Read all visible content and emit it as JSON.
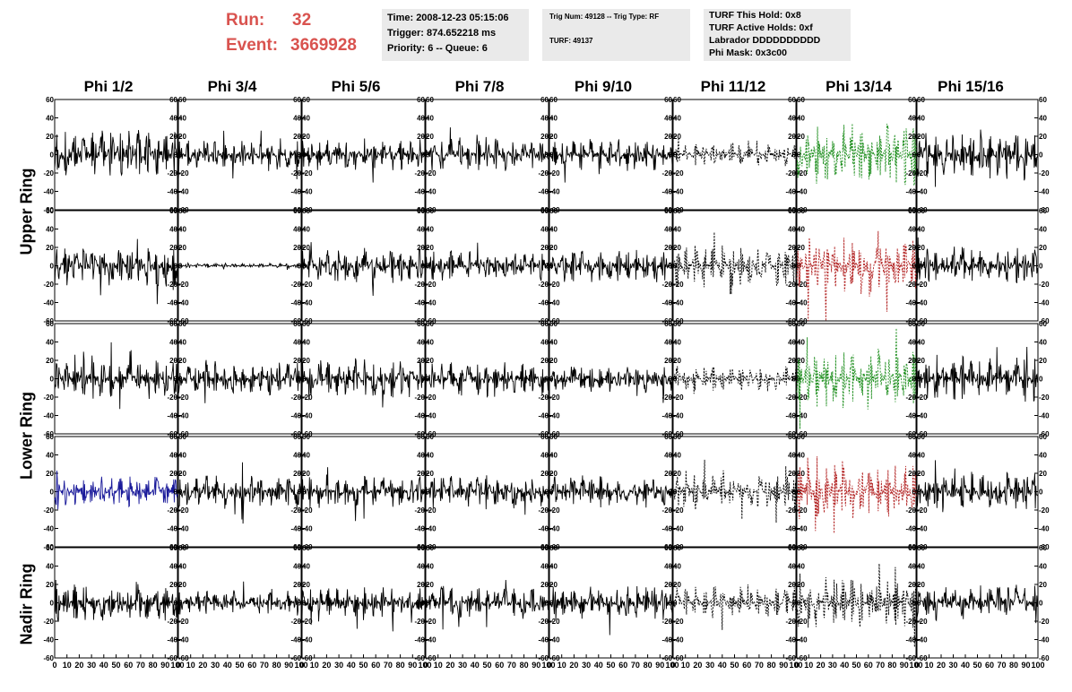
{
  "header": {
    "run_label": "Run:",
    "run_value": "32",
    "event_label": "Event:",
    "event_value": "3669928"
  },
  "info": {
    "time": "Time: 2008-12-23 05:15:06",
    "trigger": "Trigger: 874.652218 ms",
    "priority": "Priority: 6 -- Queue: 6",
    "trig_num": "Trig Num: 49128 -- Trig Type: RF",
    "turf": "TURF: 49137",
    "turf_hold": "TURF This Hold: 0x8",
    "turf_active": "TURF Active Holds: 0xf",
    "labrador": "Labrador DDDDDDDDDD",
    "phi_mask": "Phi Mask: 0x3c00"
  },
  "columns": [
    "Phi 1/2",
    "Phi 3/4",
    "Phi 5/6",
    "Phi 7/8",
    "Phi 9/10",
    "Phi 11/12",
    "Phi 13/14",
    "Phi 15/16"
  ],
  "rows": [
    "Upper Ring",
    "Lower Ring",
    "Nadir Ring"
  ],
  "axis": {
    "y_ticks": [
      "60",
      "40",
      "20",
      "0",
      "-20",
      "-40",
      "-60"
    ],
    "x_ticks": [
      "0",
      "10",
      "20",
      "30",
      "40",
      "50",
      "60",
      "70",
      "80",
      "90",
      "100"
    ],
    "ylim": [
      -60,
      60
    ],
    "xlim": [
      0,
      100
    ]
  },
  "colors": {
    "accent_red": "#d9534f",
    "trace_default": "#000000",
    "trace_blue": "#1a1a9a",
    "trace_green": "#1f8f1f",
    "trace_red": "#b22222"
  },
  "panels": [
    {
      "name": "Phi 1/2 Upper A",
      "style": "solid",
      "color": "#000000",
      "amp": 28
    },
    {
      "name": "Phi 3/4 Upper A",
      "style": "solid",
      "color": "#000000",
      "amp": 16
    },
    {
      "name": "Phi 5/6 Upper A",
      "style": "solid",
      "color": "#000000",
      "amp": 18
    },
    {
      "name": "Phi 7/8 Upper A",
      "style": "solid",
      "color": "#000000",
      "amp": 18
    },
    {
      "name": "Phi 9/10 Upper A",
      "style": "solid",
      "color": "#000000",
      "amp": 18
    },
    {
      "name": "Phi 11/12 Upper A",
      "style": "dashed",
      "color": "#000000",
      "amp": 12
    },
    {
      "name": "Phi 13/14 Upper A",
      "style": "dashed",
      "color": "#1f8f1f",
      "amp": 35
    },
    {
      "name": "Phi 15/16 Upper A",
      "style": "solid",
      "color": "#000000",
      "amp": 28
    },
    {
      "name": "Phi 1/2 Upper B",
      "style": "solid",
      "color": "#000000",
      "amp": 24
    },
    {
      "name": "Phi 3/4 Upper B",
      "style": "solid",
      "color": "#000000",
      "amp": 3
    },
    {
      "name": "Phi 5/6 Upper B",
      "style": "solid",
      "color": "#000000",
      "amp": 20
    },
    {
      "name": "Phi 7/8 Upper B",
      "style": "solid",
      "color": "#000000",
      "amp": 18
    },
    {
      "name": "Phi 9/10 Upper B",
      "style": "solid",
      "color": "#000000",
      "amp": 18
    },
    {
      "name": "Phi 11/12 Upper B",
      "style": "dashed",
      "color": "#000000",
      "amp": 24
    },
    {
      "name": "Phi 13/14 Upper B",
      "style": "dashed",
      "color": "#b22222",
      "amp": 35
    },
    {
      "name": "Phi 15/16 Upper B",
      "style": "solid",
      "color": "#000000",
      "amp": 22
    },
    {
      "name": "Phi 1/2 Lower A",
      "style": "solid",
      "color": "#000000",
      "amp": 22
    },
    {
      "name": "Phi 3/4 Lower A",
      "style": "solid",
      "color": "#000000",
      "amp": 18
    },
    {
      "name": "Phi 5/6 Lower A",
      "style": "solid",
      "color": "#000000",
      "amp": 22
    },
    {
      "name": "Phi 7/8 Lower A",
      "style": "solid",
      "color": "#000000",
      "amp": 20
    },
    {
      "name": "Phi 9/10 Lower A",
      "style": "solid",
      "color": "#000000",
      "amp": 18
    },
    {
      "name": "Phi 11/12 Lower A",
      "style": "dashed",
      "color": "#000000",
      "amp": 14
    },
    {
      "name": "Phi 13/14 Lower A",
      "style": "dashed",
      "color": "#1f8f1f",
      "amp": 35
    },
    {
      "name": "Phi 15/16 Lower A",
      "style": "solid",
      "color": "#000000",
      "amp": 26
    },
    {
      "name": "Phi 1/2 Lower B",
      "style": "solid",
      "color": "#1a1a9a",
      "amp": 17
    },
    {
      "name": "Phi 3/4 Lower B",
      "style": "solid",
      "color": "#000000",
      "amp": 20
    },
    {
      "name": "Phi 5/6 Lower B",
      "style": "solid",
      "color": "#000000",
      "amp": 18
    },
    {
      "name": "Phi 7/8 Lower B",
      "style": "solid",
      "color": "#000000",
      "amp": 20
    },
    {
      "name": "Phi 9/10 Lower B",
      "style": "solid",
      "color": "#000000",
      "amp": 18
    },
    {
      "name": "Phi 11/12 Lower B",
      "style": "dashed",
      "color": "#000000",
      "amp": 20
    },
    {
      "name": "Phi 13/14 Lower B",
      "style": "dashed",
      "color": "#b22222",
      "amp": 32
    },
    {
      "name": "Phi 15/16 Lower B",
      "style": "solid",
      "color": "#000000",
      "amp": 22
    },
    {
      "name": "Phi 1/2 Nadir",
      "style": "solid",
      "color": "#000000",
      "amp": 22
    },
    {
      "name": "Phi 3/4 Nadir",
      "style": "solid",
      "color": "#000000",
      "amp": 14
    },
    {
      "name": "Phi 5/6 Nadir",
      "style": "solid",
      "color": "#000000",
      "amp": 18
    },
    {
      "name": "Phi 7/8 Nadir",
      "style": "solid",
      "color": "#000000",
      "amp": 18
    },
    {
      "name": "Phi 9/10 Nadir",
      "style": "solid",
      "color": "#000000",
      "amp": 20
    },
    {
      "name": "Phi 11/12 Nadir",
      "style": "dashed",
      "color": "#000000",
      "amp": 18
    },
    {
      "name": "Phi 13/14 Nadir",
      "style": "dashed",
      "color": "#000000",
      "amp": 30
    },
    {
      "name": "Phi 15/16 Nadir",
      "style": "solid",
      "color": "#000000",
      "amp": 20
    }
  ]
}
